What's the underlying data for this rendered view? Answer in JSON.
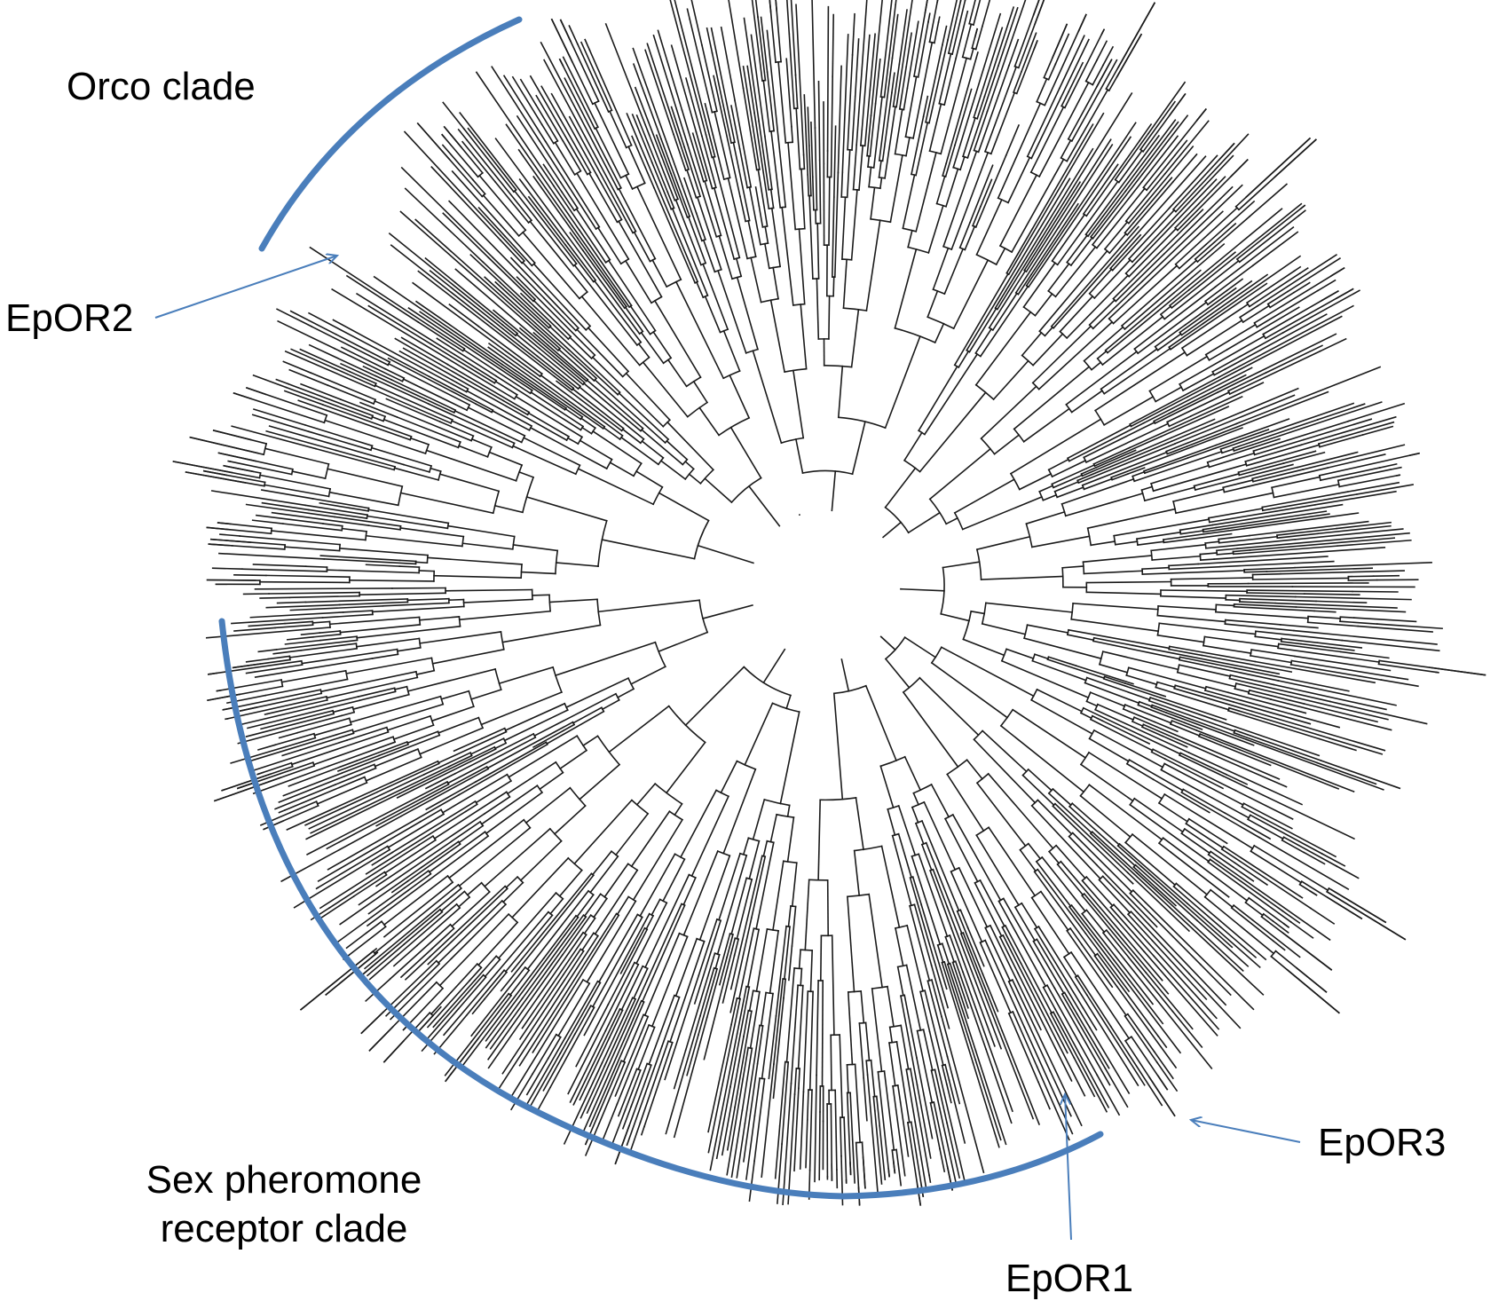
{
  "labels": {
    "orco_clade": "Orco clade",
    "sex_pheromone_line1": "Sex pheromone",
    "sex_pheromone_line2": "receptor clade",
    "epor1": "EpOR1",
    "epor2": "EpOR2",
    "epor3": "EpOR3"
  },
  "colors": {
    "branch": "#1a1a1a",
    "clade_arc": "#4a7ebb",
    "arrow": "#4a7ebb",
    "text": "#000000",
    "background": "#ffffff"
  }
}
